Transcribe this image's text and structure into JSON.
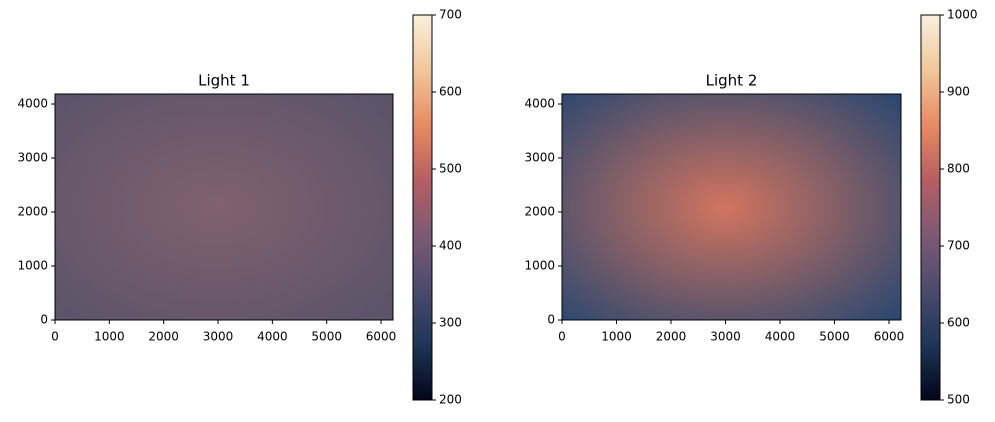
{
  "chart_data": [
    {
      "type": "image",
      "title": "Light 1",
      "xlim": [
        0,
        6220
      ],
      "ylim": [
        0,
        4185
      ],
      "xticks": [
        0,
        1000,
        2000,
        3000,
        4000,
        5000,
        6000
      ],
      "yticks": [
        0,
        1000,
        2000,
        3000,
        4000
      ],
      "image_colors": [
        "#80616f",
        "#5b5369"
      ],
      "colorbar": {
        "clim": [
          200,
          700
        ],
        "ticks": [
          200,
          300,
          400,
          500,
          600,
          700
        ],
        "colormap": [
          "#03051a",
          "#1d3557",
          "#4c4b6e",
          "#7d5a75",
          "#b65e63",
          "#e88a62",
          "#f0c79c",
          "#f8efdc"
        ]
      }
    },
    {
      "type": "image",
      "title": "Light 2",
      "xlim": [
        0,
        6220
      ],
      "ylim": [
        0,
        4185
      ],
      "xticks": [
        0,
        1000,
        2000,
        3000,
        4000,
        5000,
        6000
      ],
      "yticks": [
        0,
        1000,
        2000,
        3000,
        4000
      ],
      "image_colors": [
        "#d2745f",
        "#2c4870"
      ],
      "colorbar": {
        "clim": [
          500,
          1000
        ],
        "ticks": [
          500,
          600,
          700,
          800,
          900,
          1000
        ],
        "colormap": [
          "#03051a",
          "#1d3557",
          "#4c4b6e",
          "#7d5a75",
          "#b65e63",
          "#e88a62",
          "#f0c79c",
          "#f8efdc"
        ]
      }
    }
  ]
}
